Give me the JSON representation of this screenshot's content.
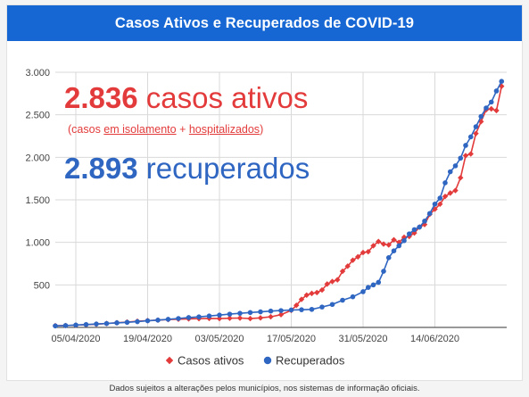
{
  "header": {
    "title": "Casos Ativos e Recuperados de COVID-19"
  },
  "overlay": {
    "active_number": "2.836",
    "active_label": "casos ativos",
    "active_note_open": "(casos ",
    "active_note_isolation": "em isolamento",
    "active_note_plus": " + ",
    "active_note_hosp": "hospitalizados",
    "active_note_close": ")",
    "recovered_number": "2.893",
    "recovered_label": "recuperados"
  },
  "footnote": "Dados sujeitos a alterações pelos municípios, nos sistemas de informação oficiais.",
  "colors": {
    "header": "#1667d4",
    "active": "#e33b3b",
    "recovered": "#2f66c2",
    "grid": "#d9d9d9"
  },
  "chart_data": {
    "type": "line",
    "x_start": "2020-04-01",
    "x_end": "2020-06-28",
    "ylim": [
      0,
      3000
    ],
    "y_ticks": [
      500,
      1000,
      1500,
      2000,
      2500,
      3000
    ],
    "y_tick_labels": [
      "500",
      "1.000",
      "1.500",
      "2.000",
      "2.500",
      "3.000"
    ],
    "x_tick_dates": [
      "2020-04-05",
      "2020-04-19",
      "2020-05-03",
      "2020-05-17",
      "2020-05-31",
      "2020-06-14"
    ],
    "x_tick_labels": [
      "05/04/2020",
      "19/04/2020",
      "03/05/2020",
      "17/05/2020",
      "31/05/2020",
      "14/06/2020"
    ],
    "legend_position": "bottom",
    "series": [
      {
        "name": "Casos ativos",
        "color": "#e33b3b",
        "marker": "diamond",
        "points": [
          [
            "2020-04-01",
            20
          ],
          [
            "2020-04-03",
            22
          ],
          [
            "2020-04-05",
            26
          ],
          [
            "2020-04-07",
            32
          ],
          [
            "2020-04-09",
            38
          ],
          [
            "2020-04-11",
            46
          ],
          [
            "2020-04-13",
            55
          ],
          [
            "2020-04-15",
            63
          ],
          [
            "2020-04-17",
            72
          ],
          [
            "2020-04-19",
            80
          ],
          [
            "2020-04-21",
            86
          ],
          [
            "2020-04-23",
            92
          ],
          [
            "2020-04-25",
            97
          ],
          [
            "2020-04-27",
            101
          ],
          [
            "2020-04-29",
            103
          ],
          [
            "2020-05-01",
            106
          ],
          [
            "2020-05-03",
            104
          ],
          [
            "2020-05-05",
            108
          ],
          [
            "2020-05-07",
            110
          ],
          [
            "2020-05-09",
            104
          ],
          [
            "2020-05-11",
            112
          ],
          [
            "2020-05-13",
            125
          ],
          [
            "2020-05-15",
            150
          ],
          [
            "2020-05-17",
            200
          ],
          [
            "2020-05-18",
            260
          ],
          [
            "2020-05-19",
            330
          ],
          [
            "2020-05-20",
            380
          ],
          [
            "2020-05-21",
            400
          ],
          [
            "2020-05-22",
            410
          ],
          [
            "2020-05-23",
            440
          ],
          [
            "2020-05-24",
            510
          ],
          [
            "2020-05-25",
            540
          ],
          [
            "2020-05-26",
            560
          ],
          [
            "2020-05-27",
            660
          ],
          [
            "2020-05-28",
            720
          ],
          [
            "2020-05-29",
            790
          ],
          [
            "2020-05-30",
            830
          ],
          [
            "2020-05-31",
            880
          ],
          [
            "2020-06-01",
            890
          ],
          [
            "2020-06-02",
            960
          ],
          [
            "2020-06-03",
            1010
          ],
          [
            "2020-06-04",
            980
          ],
          [
            "2020-06-05",
            970
          ],
          [
            "2020-06-06",
            1030
          ],
          [
            "2020-06-07",
            1000
          ],
          [
            "2020-06-08",
            1060
          ],
          [
            "2020-06-09",
            1070
          ],
          [
            "2020-06-10",
            1110
          ],
          [
            "2020-06-11",
            1180
          ],
          [
            "2020-06-12",
            1210
          ],
          [
            "2020-06-13",
            1330
          ],
          [
            "2020-06-14",
            1390
          ],
          [
            "2020-06-15",
            1450
          ],
          [
            "2020-06-16",
            1540
          ],
          [
            "2020-06-17",
            1580
          ],
          [
            "2020-06-18",
            1610
          ],
          [
            "2020-06-19",
            1760
          ],
          [
            "2020-06-20",
            2020
          ],
          [
            "2020-06-21",
            2040
          ],
          [
            "2020-06-22",
            2280
          ],
          [
            "2020-06-23",
            2420
          ],
          [
            "2020-06-24",
            2560
          ],
          [
            "2020-06-25",
            2570
          ],
          [
            "2020-06-26",
            2550
          ],
          [
            "2020-06-27",
            2836
          ]
        ]
      },
      {
        "name": "Recuperados",
        "color": "#2f66c2",
        "marker": "circle",
        "points": [
          [
            "2020-04-01",
            18
          ],
          [
            "2020-04-03",
            22
          ],
          [
            "2020-04-05",
            28
          ],
          [
            "2020-04-07",
            34
          ],
          [
            "2020-04-09",
            40
          ],
          [
            "2020-04-11",
            46
          ],
          [
            "2020-04-13",
            54
          ],
          [
            "2020-04-15",
            60
          ],
          [
            "2020-04-17",
            68
          ],
          [
            "2020-04-19",
            78
          ],
          [
            "2020-04-21",
            86
          ],
          [
            "2020-04-23",
            95
          ],
          [
            "2020-04-25",
            105
          ],
          [
            "2020-04-27",
            116
          ],
          [
            "2020-04-29",
            124
          ],
          [
            "2020-05-01",
            134
          ],
          [
            "2020-05-03",
            145
          ],
          [
            "2020-05-05",
            156
          ],
          [
            "2020-05-07",
            166
          ],
          [
            "2020-05-09",
            175
          ],
          [
            "2020-05-11",
            183
          ],
          [
            "2020-05-13",
            192
          ],
          [
            "2020-05-15",
            198
          ],
          [
            "2020-05-17",
            205
          ],
          [
            "2020-05-19",
            208
          ],
          [
            "2020-05-21",
            212
          ],
          [
            "2020-05-23",
            240
          ],
          [
            "2020-05-25",
            270
          ],
          [
            "2020-05-27",
            320
          ],
          [
            "2020-05-29",
            360
          ],
          [
            "2020-05-31",
            420
          ],
          [
            "2020-06-01",
            470
          ],
          [
            "2020-06-02",
            500
          ],
          [
            "2020-06-03",
            530
          ],
          [
            "2020-06-04",
            660
          ],
          [
            "2020-06-05",
            820
          ],
          [
            "2020-06-06",
            900
          ],
          [
            "2020-06-07",
            960
          ],
          [
            "2020-06-08",
            1020
          ],
          [
            "2020-06-09",
            1100
          ],
          [
            "2020-06-10",
            1150
          ],
          [
            "2020-06-11",
            1180
          ],
          [
            "2020-06-12",
            1250
          ],
          [
            "2020-06-13",
            1340
          ],
          [
            "2020-06-14",
            1450
          ],
          [
            "2020-06-15",
            1520
          ],
          [
            "2020-06-16",
            1700
          ],
          [
            "2020-06-17",
            1830
          ],
          [
            "2020-06-18",
            1900
          ],
          [
            "2020-06-19",
            1990
          ],
          [
            "2020-06-20",
            2140
          ],
          [
            "2020-06-21",
            2240
          ],
          [
            "2020-06-22",
            2360
          ],
          [
            "2020-06-23",
            2480
          ],
          [
            "2020-06-24",
            2580
          ],
          [
            "2020-06-25",
            2650
          ],
          [
            "2020-06-26",
            2780
          ],
          [
            "2020-06-27",
            2893
          ]
        ]
      }
    ]
  }
}
